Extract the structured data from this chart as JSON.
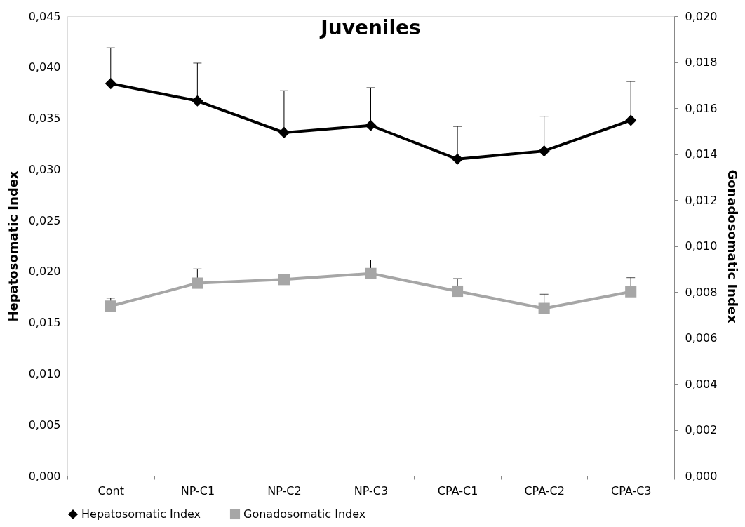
{
  "chart_data": {
    "type": "line",
    "title": "Juveniles",
    "ylabel": "Hepatosomatic Index",
    "y2label": "Gonadosomatic Index",
    "categories": [
      "Cont",
      "NP-C1",
      "NP-C2",
      "NP-C3",
      "CPA-C1",
      "CPA-C2",
      "CPA-C3"
    ],
    "series": [
      {
        "name": "Hepatosomatic Index",
        "color": "#000000",
        "marker": "diamond",
        "axis": "y",
        "values": [
          0.0384,
          0.0367,
          0.0336,
          0.0343,
          0.031,
          0.0318,
          0.0348
        ],
        "errors": [
          [
            0.0384,
            0.0419
          ],
          [
            0.0367,
            0.0404
          ],
          [
            0.0336,
            0.0377
          ],
          [
            0.0343,
            0.038
          ],
          [
            0.031,
            0.0342
          ],
          [
            0.0318,
            0.0352
          ],
          [
            0.0348,
            0.0386
          ]
        ]
      },
      {
        "name": "Gonadosomatic Index",
        "color": "#a6a6a6",
        "marker": "square",
        "axis": "y2",
        "values": [
          0.00738,
          0.00838,
          0.00854,
          0.0088,
          0.00803,
          0.00728,
          0.00801
        ],
        "errors": [
          [
            0.00738,
            0.00773
          ],
          [
            0.00838,
            0.009
          ],
          null,
          [
            0.0088,
            0.00939
          ],
          [
            0.00803,
            0.00858
          ],
          [
            0.00728,
            0.0079
          ],
          [
            0.00801,
            0.00862
          ]
        ]
      }
    ],
    "ylim": [
      0,
      0.045
    ],
    "yticks": [
      {
        "value": 0,
        "label": "0,000"
      },
      {
        "value": 0.005,
        "label": "0,005"
      },
      {
        "value": 0.01,
        "label": "0,010"
      },
      {
        "value": 0.015,
        "label": "0,015"
      },
      {
        "value": 0.02,
        "label": "0,020"
      },
      {
        "value": 0.025,
        "label": "0,025"
      },
      {
        "value": 0.03,
        "label": "0,030"
      },
      {
        "value": 0.035,
        "label": "0,035"
      },
      {
        "value": 0.04,
        "label": "0,040"
      },
      {
        "value": 0.045,
        "label": "0,045"
      }
    ],
    "y2lim": [
      0,
      0.02
    ],
    "y2ticks": [
      {
        "value": 0,
        "label": "0,000"
      },
      {
        "value": 0.002,
        "label": "0,002"
      },
      {
        "value": 0.004,
        "label": "0,004"
      },
      {
        "value": 0.006,
        "label": "0,006"
      },
      {
        "value": 0.008,
        "label": "0,008"
      },
      {
        "value": 0.01,
        "label": "0,010"
      },
      {
        "value": 0.012,
        "label": "0,012"
      },
      {
        "value": 0.014,
        "label": "0,014"
      },
      {
        "value": 0.016,
        "label": "0,016"
      },
      {
        "value": 0.018,
        "label": "0,018"
      },
      {
        "value": 0.02,
        "label": "0,020"
      }
    ],
    "grid": false,
    "legend": "bottom"
  }
}
